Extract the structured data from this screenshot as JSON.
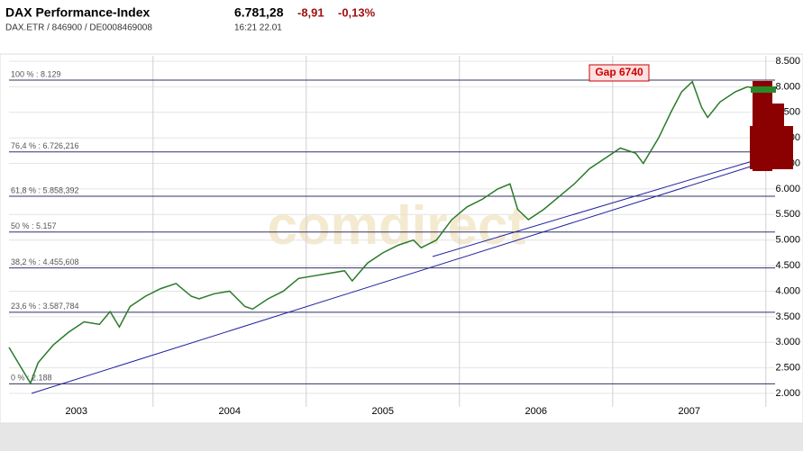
{
  "header": {
    "title": "DAX Performance-Index",
    "price": "6.781,28",
    "change": "-8,91",
    "change_pct": "-0,13%",
    "ids": "DAX.ETR  /  846900  /  DE0008469008",
    "time": "16:21  22.01",
    "watermark": "comdirect"
  },
  "chart_data": {
    "type": "line",
    "xlabels": [
      "2003",
      "2004",
      "2005",
      "2006",
      "2007"
    ],
    "xgrid": [
      2004,
      2005,
      2006,
      2007,
      2008
    ],
    "xlim": [
      2003.06,
      2008.06
    ],
    "ylim": [
      2000,
      8500
    ],
    "yticks": [
      {
        "value": 2000,
        "label": "2.000"
      },
      {
        "value": 2500,
        "label": "2.500"
      },
      {
        "value": 3000,
        "label": "3.000"
      },
      {
        "value": 3500,
        "label": "3.500"
      },
      {
        "value": 4000,
        "label": "4.000"
      },
      {
        "value": 4500,
        "label": "4.500"
      },
      {
        "value": 5000,
        "label": "5.000"
      },
      {
        "value": 5500,
        "label": "5.500"
      },
      {
        "value": 6000,
        "label": "6.000"
      },
      {
        "value": 6500,
        "label": "6.500"
      },
      {
        "value": 7000,
        "label": "7.000"
      },
      {
        "value": 7500,
        "label": "7.500"
      },
      {
        "value": 8000,
        "label": "8.000"
      },
      {
        "value": 8500,
        "label": "8.500"
      }
    ],
    "series": [
      {
        "name": "DAX",
        "color": "#2a7a2a",
        "x": [
          2003.06,
          2003.1,
          2003.15,
          2003.2,
          2003.25,
          2003.35,
          2003.45,
          2003.55,
          2003.65,
          2003.72,
          2003.78,
          2003.85,
          2003.95,
          2004.05,
          2004.15,
          2004.25,
          2004.3,
          2004.4,
          2004.5,
          2004.6,
          2004.65,
          2004.75,
          2004.85,
          2004.95,
          2005.05,
          2005.15,
          2005.25,
          2005.3,
          2005.4,
          2005.5,
          2005.6,
          2005.7,
          2005.75,
          2005.85,
          2005.95,
          2006.05,
          2006.15,
          2006.25,
          2006.33,
          2006.38,
          2006.45,
          2006.55,
          2006.65,
          2006.75,
          2006.85,
          2006.95,
          2007.05,
          2007.15,
          2007.2,
          2007.3,
          2007.38,
          2007.45,
          2007.52,
          2007.58,
          2007.62,
          2007.7,
          2007.8,
          2007.88,
          2007.95,
          2008.0,
          2008.05
        ],
        "values": [
          2900,
          2700,
          2450,
          2200,
          2600,
          2950,
          3200,
          3400,
          3350,
          3600,
          3300,
          3700,
          3900,
          4050,
          4150,
          3900,
          3850,
          3950,
          4000,
          3700,
          3650,
          3850,
          4000,
          4250,
          4300,
          4350,
          4400,
          4200,
          4550,
          4750,
          4900,
          5000,
          4850,
          5000,
          5400,
          5650,
          5800,
          6000,
          6100,
          5600,
          5400,
          5600,
          5850,
          6100,
          6400,
          6600,
          6800,
          6700,
          6500,
          7000,
          7500,
          7900,
          8100,
          7600,
          7400,
          7700,
          7900,
          8000,
          7950,
          7500,
          6781.28
        ]
      }
    ],
    "levels": [
      {
        "label": "100 % : 8.129",
        "value": 8129
      },
      {
        "label": "76,4 % : 6.726,216",
        "value": 6726.216
      },
      {
        "label": "61,8 % : 5.858,392",
        "value": 5858.392
      },
      {
        "label": "50 % : 5.157",
        "value": 5157
      },
      {
        "label": "38,2 % : 4.455,608",
        "value": 4455.608
      },
      {
        "label": "23,6 % : 3.587,784",
        "value": 3587.784
      },
      {
        "label": "0 % : 2.188",
        "value": 2188
      }
    ],
    "annotation": "Gap 6740"
  }
}
